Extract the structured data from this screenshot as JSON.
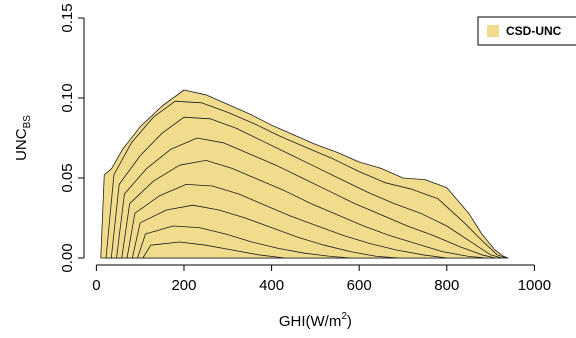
{
  "chart_data": {
    "type": "area",
    "title": "",
    "xlabel": {
      "main": "GHI(W/m",
      "sup": "2",
      "tail": ")"
    },
    "ylabel": {
      "main": "UNC",
      "sub": "BS"
    },
    "xlim": [
      -10,
      1095
    ],
    "ylim": [
      0,
      0.15
    ],
    "xticks": [
      0,
      200,
      400,
      600,
      800,
      1000
    ],
    "xtick_labels": [
      "0",
      "200",
      "400",
      "600",
      "800",
      "1000"
    ],
    "yticks": [
      0.0,
      0.05,
      0.1,
      0.15
    ],
    "ytick_labels": [
      "0.00",
      "0.05",
      "0.10",
      "0.15"
    ],
    "grid": false,
    "legend": {
      "position": "top-right",
      "entries": [
        {
          "label": "CSD-UNC",
          "color": "#f0dc8c"
        }
      ]
    },
    "colors": {
      "fill": "#f0dc8c",
      "edge": "#1e1e1e",
      "axis": "#000000"
    },
    "series": [
      {
        "values": [
          [
            10,
            0.0
          ],
          [
            18,
            0.052
          ],
          [
            35,
            0.056
          ],
          [
            60,
            0.068
          ],
          [
            100,
            0.082
          ],
          [
            150,
            0.095
          ],
          [
            200,
            0.105
          ],
          [
            250,
            0.102
          ],
          [
            300,
            0.096
          ],
          [
            350,
            0.09
          ],
          [
            400,
            0.083
          ],
          [
            450,
            0.077
          ],
          [
            500,
            0.071
          ],
          [
            550,
            0.066
          ],
          [
            600,
            0.06
          ],
          [
            650,
            0.056
          ],
          [
            700,
            0.05
          ],
          [
            750,
            0.049
          ],
          [
            800,
            0.044
          ],
          [
            850,
            0.028
          ],
          [
            880,
            0.015
          ],
          [
            910,
            0.005
          ],
          [
            930,
            0.001
          ],
          [
            940,
            0.0
          ]
        ]
      },
      {
        "values": [
          [
            22,
            0.0
          ],
          [
            40,
            0.052
          ],
          [
            80,
            0.072
          ],
          [
            130,
            0.088
          ],
          [
            180,
            0.098
          ],
          [
            240,
            0.097
          ],
          [
            300,
            0.091
          ],
          [
            360,
            0.084
          ],
          [
            420,
            0.076
          ],
          [
            480,
            0.069
          ],
          [
            540,
            0.062
          ],
          [
            600,
            0.054
          ],
          [
            660,
            0.047
          ],
          [
            720,
            0.043
          ],
          [
            780,
            0.037
          ],
          [
            840,
            0.022
          ],
          [
            880,
            0.011
          ],
          [
            915,
            0.002
          ],
          [
            935,
            0.0
          ]
        ]
      },
      {
        "values": [
          [
            34,
            0.0
          ],
          [
            52,
            0.046
          ],
          [
            100,
            0.064
          ],
          [
            150,
            0.078
          ],
          [
            200,
            0.088
          ],
          [
            260,
            0.087
          ],
          [
            320,
            0.081
          ],
          [
            380,
            0.073
          ],
          [
            440,
            0.065
          ],
          [
            500,
            0.057
          ],
          [
            560,
            0.049
          ],
          [
            620,
            0.041
          ],
          [
            680,
            0.034
          ],
          [
            740,
            0.028
          ],
          [
            800,
            0.02
          ],
          [
            850,
            0.011
          ],
          [
            900,
            0.002
          ],
          [
            925,
            0.0
          ]
        ]
      },
      {
        "values": [
          [
            46,
            0.0
          ],
          [
            64,
            0.04
          ],
          [
            115,
            0.056
          ],
          [
            170,
            0.068
          ],
          [
            230,
            0.075
          ],
          [
            290,
            0.072
          ],
          [
            350,
            0.065
          ],
          [
            410,
            0.058
          ],
          [
            470,
            0.05
          ],
          [
            530,
            0.042
          ],
          [
            590,
            0.034
          ],
          [
            650,
            0.027
          ],
          [
            710,
            0.02
          ],
          [
            770,
            0.014
          ],
          [
            830,
            0.007
          ],
          [
            880,
            0.002
          ],
          [
            910,
            0.0
          ]
        ]
      },
      {
        "values": [
          [
            58,
            0.0
          ],
          [
            76,
            0.034
          ],
          [
            130,
            0.048
          ],
          [
            190,
            0.058
          ],
          [
            250,
            0.061
          ],
          [
            310,
            0.056
          ],
          [
            370,
            0.049
          ],
          [
            430,
            0.042
          ],
          [
            490,
            0.034
          ],
          [
            550,
            0.027
          ],
          [
            610,
            0.02
          ],
          [
            670,
            0.014
          ],
          [
            730,
            0.009
          ],
          [
            790,
            0.004
          ],
          [
            850,
            0.001
          ],
          [
            890,
            0.0
          ]
        ]
      },
      {
        "values": [
          [
            70,
            0.0
          ],
          [
            88,
            0.028
          ],
          [
            145,
            0.039
          ],
          [
            205,
            0.046
          ],
          [
            265,
            0.045
          ],
          [
            325,
            0.04
          ],
          [
            385,
            0.033
          ],
          [
            445,
            0.026
          ],
          [
            505,
            0.02
          ],
          [
            565,
            0.014
          ],
          [
            625,
            0.009
          ],
          [
            685,
            0.005
          ],
          [
            745,
            0.002
          ],
          [
            800,
            0.0
          ]
        ]
      },
      {
        "values": [
          [
            82,
            0.0
          ],
          [
            100,
            0.022
          ],
          [
            160,
            0.03
          ],
          [
            220,
            0.033
          ],
          [
            280,
            0.03
          ],
          [
            340,
            0.025
          ],
          [
            400,
            0.019
          ],
          [
            460,
            0.013
          ],
          [
            520,
            0.008
          ],
          [
            580,
            0.004
          ],
          [
            640,
            0.001
          ],
          [
            690,
            0.0
          ]
        ]
      },
      {
        "values": [
          [
            94,
            0.0
          ],
          [
            112,
            0.015
          ],
          [
            175,
            0.02
          ],
          [
            235,
            0.019
          ],
          [
            295,
            0.015
          ],
          [
            355,
            0.01
          ],
          [
            415,
            0.006
          ],
          [
            475,
            0.003
          ],
          [
            535,
            0.001
          ],
          [
            580,
            0.0
          ]
        ]
      },
      {
        "values": [
          [
            106,
            0.0
          ],
          [
            124,
            0.008
          ],
          [
            190,
            0.01
          ],
          [
            250,
            0.008
          ],
          [
            310,
            0.005
          ],
          [
            370,
            0.002
          ],
          [
            430,
            0.0
          ]
        ]
      }
    ]
  }
}
